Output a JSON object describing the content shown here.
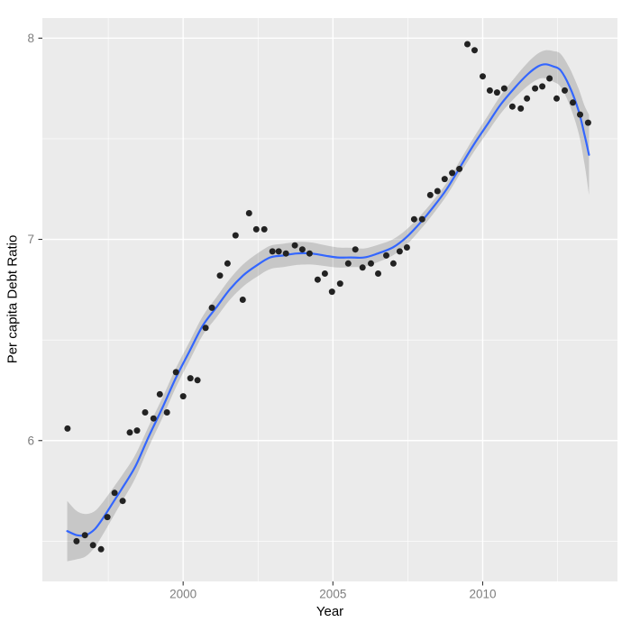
{
  "chart_data": {
    "type": "scatter",
    "title": "",
    "xlabel": "Year",
    "ylabel": "Per capita Debt Ratio",
    "xlim": [
      1995.3,
      2014.5
    ],
    "ylim": [
      5.3,
      8.1
    ],
    "x_major_ticks": [
      2000,
      2005,
      2010
    ],
    "x_minor_gridlines": [
      1997.5,
      2002.5,
      2007.5,
      2012.5
    ],
    "y_major_ticks": [
      6,
      7,
      8
    ],
    "y_minor_gridlines": [
      5.5,
      6.5,
      7.5
    ],
    "grid": true,
    "legend_position": "none",
    "points": [
      [
        1996.14,
        6.06
      ],
      [
        1996.44,
        5.5
      ],
      [
        1996.72,
        5.53
      ],
      [
        1996.99,
        5.48
      ],
      [
        1997.26,
        5.46
      ],
      [
        1997.47,
        5.62
      ],
      [
        1997.71,
        5.74
      ],
      [
        1997.98,
        5.7
      ],
      [
        1998.22,
        6.04
      ],
      [
        1998.46,
        6.05
      ],
      [
        1998.73,
        6.14
      ],
      [
        1999.01,
        6.11
      ],
      [
        1999.22,
        6.23
      ],
      [
        1999.46,
        6.14
      ],
      [
        1999.76,
        6.34
      ],
      [
        2000.0,
        6.22
      ],
      [
        2000.24,
        6.31
      ],
      [
        2000.48,
        6.3
      ],
      [
        2000.75,
        6.56
      ],
      [
        2000.96,
        6.66
      ],
      [
        2001.23,
        6.82
      ],
      [
        2001.48,
        6.88
      ],
      [
        2001.75,
        7.02
      ],
      [
        2001.99,
        6.7
      ],
      [
        2002.2,
        7.13
      ],
      [
        2002.44,
        7.05
      ],
      [
        2002.71,
        7.05
      ],
      [
        2002.98,
        6.94
      ],
      [
        2003.19,
        6.94
      ],
      [
        2003.43,
        6.93
      ],
      [
        2003.73,
        6.97
      ],
      [
        2003.98,
        6.95
      ],
      [
        2004.22,
        6.93
      ],
      [
        2004.49,
        6.8
      ],
      [
        2004.73,
        6.83
      ],
      [
        2004.97,
        6.74
      ],
      [
        2005.24,
        6.78
      ],
      [
        2005.51,
        6.88
      ],
      [
        2005.75,
        6.95
      ],
      [
        2005.99,
        6.86
      ],
      [
        2006.27,
        6.88
      ],
      [
        2006.51,
        6.83
      ],
      [
        2006.78,
        6.92
      ],
      [
        2007.02,
        6.88
      ],
      [
        2007.23,
        6.94
      ],
      [
        2007.47,
        6.96
      ],
      [
        2007.71,
        7.1
      ],
      [
        2007.98,
        7.1
      ],
      [
        2008.25,
        7.22
      ],
      [
        2008.49,
        7.24
      ],
      [
        2008.73,
        7.3
      ],
      [
        2008.98,
        7.33
      ],
      [
        2009.22,
        7.35
      ],
      [
        2009.49,
        7.97
      ],
      [
        2009.73,
        7.94
      ],
      [
        2010.0,
        7.81
      ],
      [
        2010.24,
        7.74
      ],
      [
        2010.48,
        7.73
      ],
      [
        2010.72,
        7.75
      ],
      [
        2010.99,
        7.66
      ],
      [
        2011.27,
        7.65
      ],
      [
        2011.48,
        7.7
      ],
      [
        2011.75,
        7.75
      ],
      [
        2011.99,
        7.76
      ],
      [
        2012.23,
        7.8
      ],
      [
        2012.47,
        7.7
      ],
      [
        2012.74,
        7.74
      ],
      [
        2013.01,
        7.68
      ],
      [
        2013.25,
        7.62
      ],
      [
        2013.52,
        7.58
      ]
    ],
    "smooth_fit": [
      [
        1996.13,
        5.55,
        0.15
      ],
      [
        1996.45,
        5.53,
        0.12
      ],
      [
        1996.75,
        5.53,
        0.105
      ],
      [
        1997.05,
        5.56,
        0.09
      ],
      [
        1997.35,
        5.62,
        0.08
      ],
      [
        1997.65,
        5.69,
        0.072
      ],
      [
        1997.95,
        5.76,
        0.065
      ],
      [
        1998.4,
        5.87,
        0.058
      ],
      [
        1998.85,
        6.02,
        0.052
      ],
      [
        1999.3,
        6.16,
        0.05
      ],
      [
        1999.75,
        6.31,
        0.048
      ],
      [
        2000.2,
        6.44,
        0.047
      ],
      [
        2000.65,
        6.57,
        0.047
      ],
      [
        2001.1,
        6.66,
        0.05
      ],
      [
        2001.55,
        6.75,
        0.052
      ],
      [
        2002.0,
        6.82,
        0.055
      ],
      [
        2002.45,
        6.87,
        0.057
      ],
      [
        2002.9,
        6.91,
        0.058
      ],
      [
        2003.35,
        6.92,
        0.058
      ],
      [
        2003.8,
        6.93,
        0.057
      ],
      [
        2004.25,
        6.93,
        0.055
      ],
      [
        2004.7,
        6.92,
        0.052
      ],
      [
        2005.15,
        6.91,
        0.05
      ],
      [
        2005.6,
        6.91,
        0.048
      ],
      [
        2006.05,
        6.91,
        0.045
      ],
      [
        2006.5,
        6.93,
        0.043
      ],
      [
        2007.0,
        6.96,
        0.04
      ],
      [
        2007.45,
        7.01,
        0.038
      ],
      [
        2007.9,
        7.08,
        0.035
      ],
      [
        2008.35,
        7.16,
        0.033
      ],
      [
        2008.8,
        7.25,
        0.032
      ],
      [
        2009.25,
        7.36,
        0.033
      ],
      [
        2009.7,
        7.47,
        0.036
      ],
      [
        2010.15,
        7.57,
        0.04
      ],
      [
        2010.6,
        7.67,
        0.045
      ],
      [
        2011.05,
        7.75,
        0.05
      ],
      [
        2011.5,
        7.82,
        0.058
      ],
      [
        2011.85,
        7.86,
        0.064
      ],
      [
        2012.1,
        7.87,
        0.07
      ],
      [
        2012.35,
        7.86,
        0.076
      ],
      [
        2012.6,
        7.84,
        0.082
      ],
      [
        2012.9,
        7.76,
        0.092
      ],
      [
        2013.2,
        7.64,
        0.11
      ],
      [
        2013.4,
        7.52,
        0.145
      ],
      [
        2013.55,
        7.42,
        0.2
      ]
    ],
    "colors": {
      "panel_background": "#EBEBEB",
      "gridline": "#FFFFFF",
      "smooth_line": "#3366FF",
      "ribbon": "rgba(0,0,0,0.152)",
      "point": "#222222",
      "tick_mark": "#333333",
      "tick_label": "#7E7E7E",
      "axis_title": "#000000"
    }
  }
}
